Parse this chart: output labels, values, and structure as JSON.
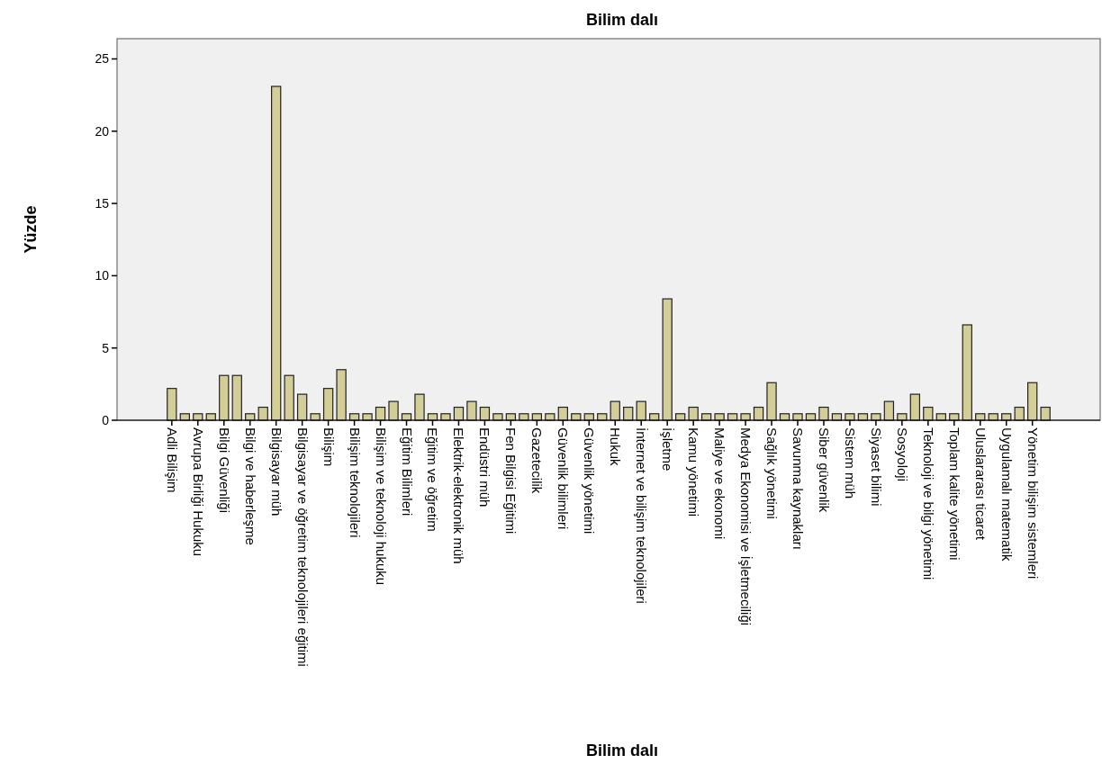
{
  "chart_data": {
    "type": "bar",
    "title": "Bilim dalı",
    "xlabel": "Bilim dalı",
    "ylabel": "Yüzde",
    "categories": [
      "Adli Bilişim",
      null,
      "Avrupa Birliği Hukuku",
      null,
      "Bilgi Güvenliği",
      null,
      "Bilgi ve haberleşme",
      null,
      "Bilgisayar müh",
      null,
      "Bilgisayar ve öğretim teknolojileri eğitimi",
      null,
      "Bilişim",
      null,
      "Bilişim teknolojileri",
      null,
      "Bilişim ve teknoloji hukuku",
      null,
      "Eğitim Bilimleri",
      null,
      "Eğitim ve öğretim",
      null,
      "Elektrik-elektronik müh",
      null,
      "Endüstri müh",
      null,
      "Fen Bilgisi Eğitimi",
      null,
      "Gazetecilik",
      null,
      "Güvenlik bilimleri",
      null,
      "Güvenlik yönetimi",
      null,
      "Hukuk",
      null,
      "İnternet ve bilişim teknolojileri",
      null,
      "İşletme",
      null,
      "Kamu yönetimi",
      null,
      "Maliye ve ekonomi",
      null,
      "Medya Ekonomisi ve İşletmeciliği",
      null,
      "Sağlık yönetimi",
      null,
      "Savunma kaynakları",
      null,
      "Siber güvenlik",
      null,
      "Sistem müh",
      null,
      "Siyaset bilimi",
      null,
      "Sosyoloji",
      null,
      "Teknoloji ve bilgi yönetimi",
      null,
      "Toplam kalite yönetimi",
      null,
      "Uluslararası ticaret",
      null,
      "Uygulamalı matematik",
      null,
      "Yönetim bilişim sistemleri",
      null
    ],
    "values": [
      2.2,
      0.45,
      0.45,
      0.45,
      3.1,
      3.1,
      0.45,
      0.9,
      23.1,
      3.1,
      1.8,
      0.45,
      2.2,
      3.5,
      0.45,
      0.45,
      0.9,
      1.3,
      0.45,
      1.8,
      0.45,
      0.45,
      0.9,
      1.3,
      0.9,
      0.45,
      0.45,
      0.45,
      0.45,
      0.45,
      0.9,
      0.45,
      0.45,
      0.45,
      1.3,
      0.9,
      1.3,
      0.45,
      8.4,
      0.45,
      0.9,
      0.45,
      0.45,
      0.45,
      0.45,
      0.9,
      2.6,
      0.45,
      0.45,
      0.45,
      0.9,
      0.45,
      0.45,
      0.45,
      0.45,
      1.3,
      0.45,
      1.8,
      0.9,
      0.45,
      0.45,
      6.6,
      0.45,
      0.45,
      0.45,
      0.9,
      2.6,
      0.9
    ],
    "color": "#d3ce97",
    "ylim": [
      0,
      26.4
    ],
    "yticks": [
      0,
      5,
      10,
      15,
      20,
      25
    ]
  }
}
